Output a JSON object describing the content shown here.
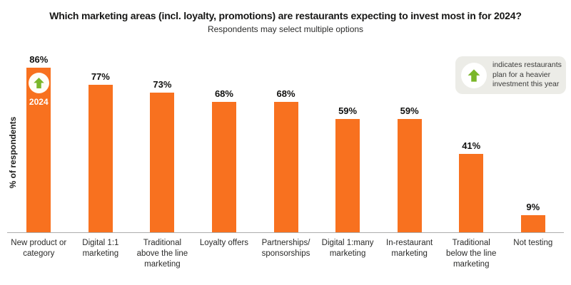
{
  "title": "Which marketing areas (incl. loyalty, promotions) are restaurants expecting to invest most in for 2024?",
  "subtitle": "Respondents may select multiple options",
  "y_axis_label": "% of respondents",
  "legend": {
    "icon": "up-arrow-icon",
    "text": "indicates restaurants plan for a heavier investment this year"
  },
  "annotation": {
    "applies_to_category": "New product or category",
    "icon": "up-arrow-icon",
    "year_label": "2024"
  },
  "colors": {
    "bar": "#F8711F",
    "arrow_green": "#7AB629",
    "legend_bg": "#ECECE7",
    "axis_line": "#ADADAD",
    "text": "#1C1C1B"
  },
  "chart_data": {
    "type": "bar",
    "categories": [
      "New product or category",
      "Digital 1:1 marketing",
      "Traditional above the line marketing",
      "Loyalty offers",
      "Partnerships/ sponsorships",
      "Digital 1:many marketing",
      "In-restaurant marketing",
      "Traditional below the line marketing",
      "Not testing"
    ],
    "values": [
      86,
      77,
      73,
      68,
      68,
      59,
      59,
      41,
      9
    ],
    "value_labels": [
      "86%",
      "77%",
      "73%",
      "68%",
      "68%",
      "59%",
      "59%",
      "41%",
      "9%"
    ],
    "unit": "%",
    "highlighted_index": 0,
    "title": "Which marketing areas (incl. loyalty, promotions) are restaurants expecting to invest most in for 2024?",
    "subtitle": "Respondents may select multiple options",
    "xlabel": "",
    "ylabel": "% of respondents",
    "ylim": [
      0,
      100
    ],
    "grid": false,
    "legend_position": "top-right",
    "value_labels_shown": true
  }
}
